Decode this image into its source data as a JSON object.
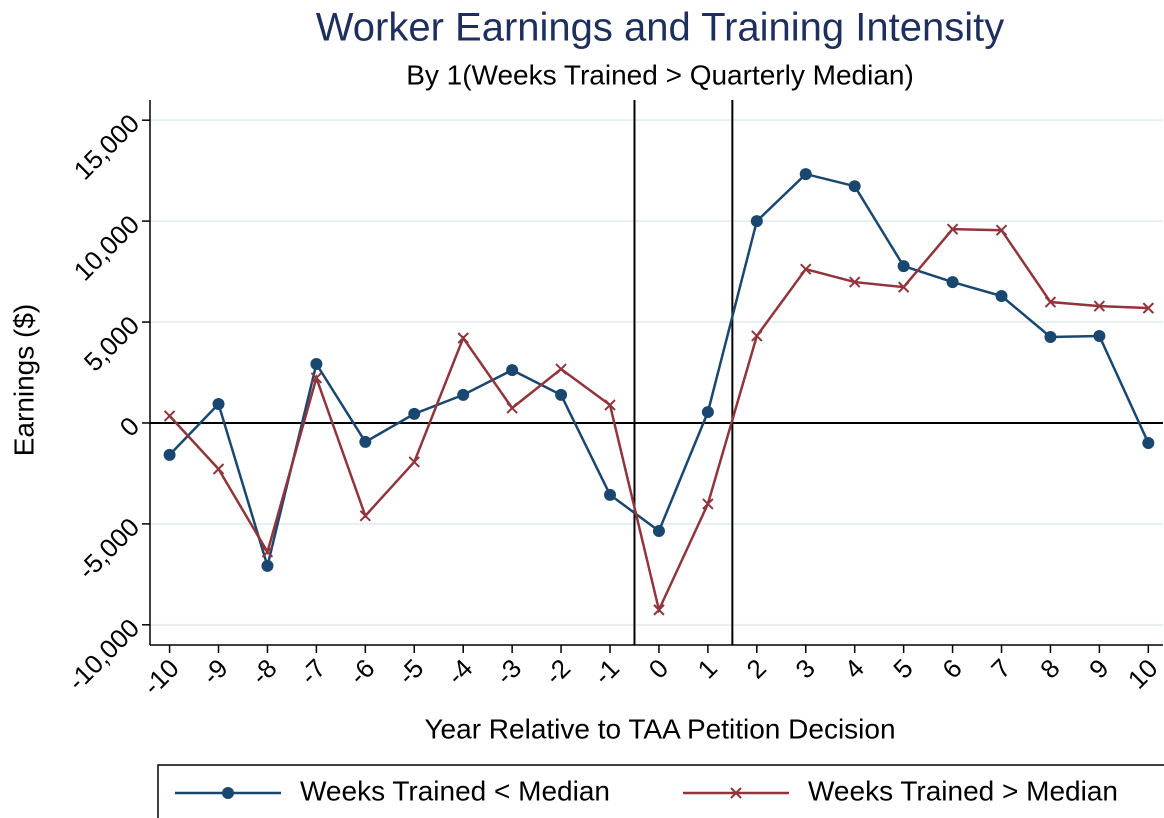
{
  "chart_data": {
    "type": "line",
    "title": "Worker Earnings and Training Intensity",
    "subtitle": "By 1(Weeks Trained > Quarterly Median)",
    "x_label": "Year Relative to TAA Petition Decision",
    "y_label": "Earnings ($)",
    "x": [
      -10,
      -9,
      -8,
      -7,
      -6,
      -5,
      -4,
      -3,
      -2,
      -1,
      0,
      1,
      2,
      3,
      4,
      5,
      6,
      7,
      8,
      9,
      10
    ],
    "series": [
      {
        "name": "Weeks Trained < Median",
        "color": "#1a476f",
        "marker": "circle",
        "values": [
          -1580,
          940,
          -7080,
          2920,
          -940,
          450,
          1390,
          2620,
          1390,
          -3560,
          -5350,
          540,
          10000,
          12330,
          11730,
          7770,
          6980,
          6290,
          4260,
          4310,
          -990
        ]
      },
      {
        "name": "Weeks Trained > Median",
        "color": "#90353b",
        "marker": "x",
        "values": [
          350,
          -2280,
          -6390,
          2230,
          -4600,
          -1930,
          4210,
          740,
          2670,
          890,
          -9260,
          -4010,
          4310,
          7620,
          6980,
          6730,
          9600,
          9550,
          5990,
          5790,
          5690
        ]
      }
    ],
    "xlim": [
      -10.4,
      10.3
    ],
    "ylim": [
      -11000,
      16000
    ],
    "xticks": [
      -10,
      -9,
      -8,
      -7,
      -6,
      -5,
      -4,
      -3,
      -2,
      -1,
      0,
      1,
      2,
      3,
      4,
      5,
      6,
      7,
      8,
      9,
      10
    ],
    "yticks": [
      {
        "value": -10000,
        "label": "-10,000"
      },
      {
        "value": -5000,
        "label": "-5,000"
      },
      0,
      {
        "value": 5000,
        "label": "5,000"
      },
      {
        "value": 10000,
        "label": "10,000"
      },
      {
        "value": 15000,
        "label": "15,000"
      }
    ],
    "x_reference_lines": [
      -0.5,
      1.5
    ],
    "y_reference_lines": [
      0
    ],
    "grid": true,
    "legend_position": "bottom"
  }
}
